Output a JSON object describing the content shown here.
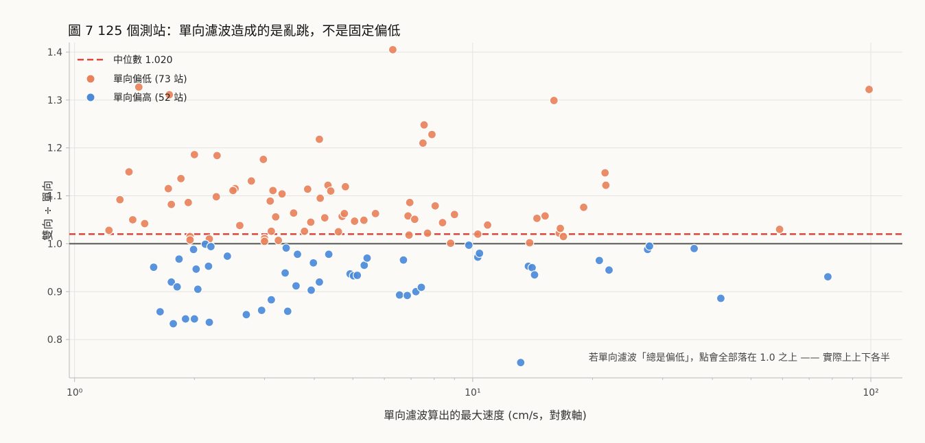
{
  "colors": {
    "below": "#e8825a",
    "above": "#4a8ad8",
    "median": "#d9463c",
    "baseline": "#555555"
  },
  "chart_data": {
    "type": "scatter",
    "title": "圖 7  125 個測站：單向濾波造成的是亂跳，不是固定偏低",
    "xlabel": "單向濾波算出的最大速度 (cm/s，對數軸)",
    "ylabel": "雙向 ÷ 單向",
    "x_scale": "log",
    "xlim": [
      0.97,
      120
    ],
    "ylim": [
      0.72,
      1.42
    ],
    "x_major_ticks": [
      1,
      10,
      100
    ],
    "x_tick_labels": [
      "10⁰",
      "10¹",
      "10²"
    ],
    "y_ticks": [
      0.8,
      0.9,
      1.0,
      1.1,
      1.2,
      1.3,
      1.4
    ],
    "y_tick_labels": [
      "0.8",
      "0.9",
      "1.0",
      "1.1",
      "1.2",
      "1.3",
      "1.4"
    ],
    "grid": true,
    "legend_position": "top-left",
    "median": {
      "label": "中位數 1.020",
      "value": 1.02
    },
    "baseline": 1.0,
    "annotation": "若單向濾波「總是偏低」，點會全部落在 1.0 之上 —— 實際上上下各半",
    "series": [
      {
        "name": "單向偏低 (73 站)",
        "key": "below",
        "points": [
          [
            1.22,
            1.028
          ],
          [
            1.3,
            1.092
          ],
          [
            1.37,
            1.15
          ],
          [
            1.4,
            1.05
          ],
          [
            1.45,
            1.327
          ],
          [
            1.5,
            1.042
          ],
          [
            1.73,
            1.311
          ],
          [
            1.72,
            1.115
          ],
          [
            1.75,
            1.082
          ],
          [
            1.85,
            1.136
          ],
          [
            1.93,
            1.086
          ],
          [
            1.95,
            1.015
          ],
          [
            1.95,
            1.008
          ],
          [
            2.0,
            1.186
          ],
          [
            2.18,
            1.01
          ],
          [
            2.27,
            1.098
          ],
          [
            2.28,
            1.184
          ],
          [
            2.53,
            1.115
          ],
          [
            2.5,
            1.111
          ],
          [
            2.6,
            1.038
          ],
          [
            2.78,
            1.131
          ],
          [
            2.98,
            1.176
          ],
          [
            3.0,
            1.011
          ],
          [
            3.0,
            1.005
          ],
          [
            3.1,
            1.089
          ],
          [
            3.12,
            1.026
          ],
          [
            3.15,
            1.111
          ],
          [
            3.2,
            1.056
          ],
          [
            3.25,
            1.007
          ],
          [
            3.32,
            1.104
          ],
          [
            3.55,
            1.064
          ],
          [
            3.78,
            1.026
          ],
          [
            3.85,
            1.114
          ],
          [
            3.92,
            1.045
          ],
          [
            4.12,
            1.218
          ],
          [
            4.14,
            1.095
          ],
          [
            4.25,
            1.054
          ],
          [
            4.33,
            1.122
          ],
          [
            4.4,
            1.11
          ],
          [
            4.6,
            1.025
          ],
          [
            4.7,
            1.057
          ],
          [
            4.76,
            1.063
          ],
          [
            4.79,
            1.119
          ],
          [
            5.05,
            1.047
          ],
          [
            5.33,
            1.049
          ],
          [
            5.7,
            1.063
          ],
          [
            6.3,
            1.405
          ],
          [
            6.88,
            1.058
          ],
          [
            6.92,
            1.018
          ],
          [
            6.95,
            1.086
          ],
          [
            7.15,
            1.051
          ],
          [
            7.5,
            1.21
          ],
          [
            7.55,
            1.248
          ],
          [
            7.7,
            1.022
          ],
          [
            7.9,
            1.228
          ],
          [
            8.05,
            1.079
          ],
          [
            8.4,
            1.044
          ],
          [
            8.8,
            1.001
          ],
          [
            9.0,
            1.061
          ],
          [
            10.3,
            1.02
          ],
          [
            10.9,
            1.039
          ],
          [
            13.9,
            1.002
          ],
          [
            14.5,
            1.053
          ],
          [
            15.2,
            1.058
          ],
          [
            16.0,
            1.299
          ],
          [
            16.5,
            1.022
          ],
          [
            16.6,
            1.032
          ],
          [
            16.9,
            1.015
          ],
          [
            19.0,
            1.076
          ],
          [
            21.5,
            1.148
          ],
          [
            21.6,
            1.122
          ],
          [
            59.0,
            1.03
          ],
          [
            99.0,
            1.322
          ]
        ]
      },
      {
        "name": "單向偏高 (52 站)",
        "key": "above",
        "points": [
          [
            1.58,
            0.951
          ],
          [
            1.64,
            0.858
          ],
          [
            1.75,
            0.92
          ],
          [
            1.77,
            0.833
          ],
          [
            1.81,
            0.91
          ],
          [
            1.83,
            0.968
          ],
          [
            1.9,
            0.843
          ],
          [
            1.99,
            0.988
          ],
          [
            2.0,
            0.843
          ],
          [
            2.02,
            0.947
          ],
          [
            2.04,
            0.905
          ],
          [
            2.13,
            0.999
          ],
          [
            2.17,
            0.953
          ],
          [
            2.18,
            0.836
          ],
          [
            2.2,
            0.994
          ],
          [
            2.42,
            0.974
          ],
          [
            2.7,
            0.852
          ],
          [
            2.95,
            0.861
          ],
          [
            3.12,
            0.883
          ],
          [
            3.38,
            0.939
          ],
          [
            3.4,
            0.991
          ],
          [
            3.43,
            0.859
          ],
          [
            3.6,
            0.912
          ],
          [
            3.63,
            0.978
          ],
          [
            3.93,
            0.903
          ],
          [
            3.98,
            0.96
          ],
          [
            4.12,
            0.92
          ],
          [
            4.35,
            0.978
          ],
          [
            4.92,
            0.937
          ],
          [
            5.02,
            0.933
          ],
          [
            5.13,
            0.934
          ],
          [
            5.34,
            0.955
          ],
          [
            5.43,
            0.97
          ],
          [
            6.55,
            0.893
          ],
          [
            6.7,
            0.966
          ],
          [
            6.85,
            0.892
          ],
          [
            7.2,
            0.9
          ],
          [
            7.43,
            0.909
          ],
          [
            9.78,
            0.997
          ],
          [
            10.3,
            0.972
          ],
          [
            10.4,
            0.98
          ],
          [
            13.2,
            0.752
          ],
          [
            13.8,
            0.953
          ],
          [
            14.1,
            0.95
          ],
          [
            14.3,
            0.935
          ],
          [
            20.8,
            0.965
          ],
          [
            22.0,
            0.945
          ],
          [
            27.5,
            0.988
          ],
          [
            27.8,
            0.995
          ],
          [
            36.0,
            0.99
          ],
          [
            42.0,
            0.886
          ],
          [
            78.0,
            0.931
          ]
        ]
      }
    ]
  }
}
